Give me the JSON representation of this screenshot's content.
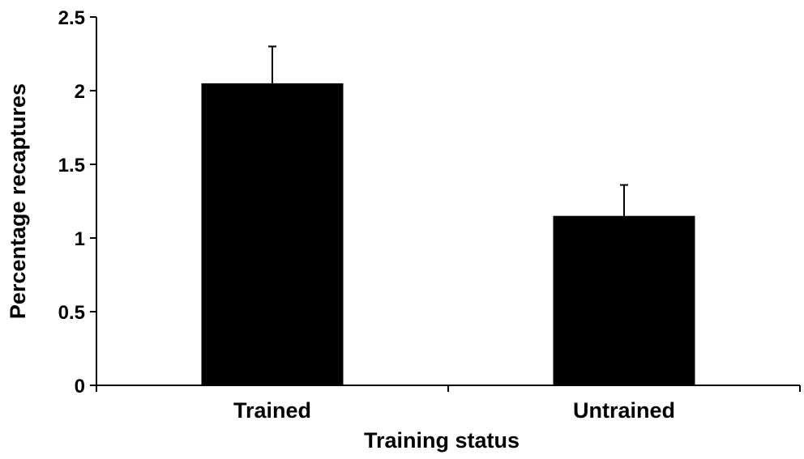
{
  "chart_data": {
    "type": "bar",
    "title": "",
    "xlabel": "Training status",
    "ylabel": "Percentage recaptures",
    "categories": [
      "Trained",
      "Untrained"
    ],
    "values": [
      2.05,
      1.15
    ],
    "error_upper": [
      0.25,
      0.21
    ],
    "ylim": [
      0,
      2.5
    ],
    "yticks": [
      "0",
      "0.5",
      "1",
      "1.5",
      "2",
      "2.5"
    ],
    "grid": false,
    "legend": "none",
    "bar_color": "#000000"
  }
}
